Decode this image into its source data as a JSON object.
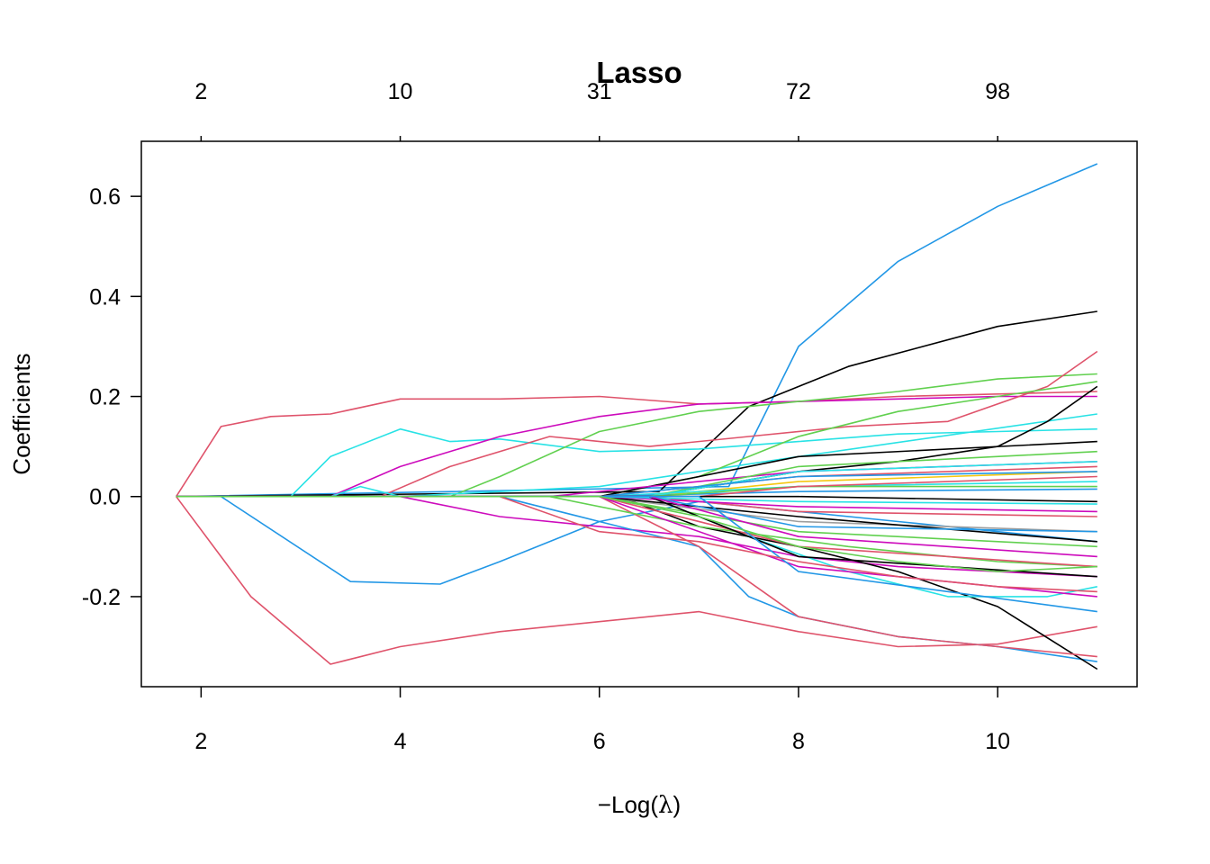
{
  "chart_data": {
    "type": "line",
    "title": "Lasso",
    "xlabel_prefix": "−Log(",
    "xlabel_symbol": "λ",
    "xlabel_suffix": ")",
    "ylabel": "Coefficients",
    "xlim": [
      1.4,
      11.4
    ],
    "ylim": [
      -0.38,
      0.71
    ],
    "x_ticks": [
      2,
      4,
      6,
      8,
      10
    ],
    "y_ticks": [
      0.6,
      0.4,
      0.2,
      0.0,
      -0.2
    ],
    "y_tick_labels": [
      "0.6",
      "0.4",
      "0.2",
      "0.0",
      "-0.2"
    ],
    "top_axis": {
      "positions": [
        2,
        4,
        6,
        8,
        10
      ],
      "labels": [
        "2",
        "10",
        "31",
        "72",
        "98"
      ]
    },
    "grid": false,
    "legend": "none",
    "series": [
      {
        "color": "#2297E6",
        "x": [
          1.75,
          7.3,
          8.0,
          9.0,
          10.0,
          11.0
        ],
        "values": [
          0,
          0.02,
          0.3,
          0.47,
          0.58,
          0.665
        ]
      },
      {
        "color": "#000000",
        "x": [
          1.75,
          6.6,
          7.5,
          8.5,
          10.0,
          11.0
        ],
        "values": [
          0,
          0.01,
          0.18,
          0.26,
          0.34,
          0.37
        ]
      },
      {
        "color": "#DF536B",
        "x": [
          1.75,
          2.2,
          2.7,
          3.3,
          4.0,
          5.0,
          6.0,
          7.0,
          8.0,
          9.0,
          10.0,
          11.0
        ],
        "values": [
          0,
          0.14,
          0.16,
          0.165,
          0.195,
          0.195,
          0.2,
          0.185,
          0.19,
          0.2,
          0.205,
          0.21
        ]
      },
      {
        "color": "#DF536B",
        "x": [
          1.75,
          2.5,
          3.3,
          4.0,
          5.0,
          6.0,
          7.0,
          8.0,
          9.0,
          10.0,
          11.0
        ],
        "values": [
          0,
          -0.2,
          -0.335,
          -0.3,
          -0.27,
          -0.25,
          -0.23,
          -0.27,
          -0.3,
          -0.295,
          -0.26
        ]
      },
      {
        "color": "#2297E6",
        "x": [
          1.75,
          2.2,
          3.5,
          4.4,
          5.0,
          6.0,
          7.0,
          8.0,
          9.0,
          10.0,
          11.0
        ],
        "values": [
          0,
          0,
          -0.17,
          -0.175,
          -0.13,
          -0.05,
          -0.01,
          -0.03,
          -0.05,
          -0.07,
          -0.09
        ]
      },
      {
        "color": "#28E2E5",
        "x": [
          1.75,
          2.9,
          3.3,
          4.0,
          4.5,
          5.0,
          6.0,
          7.0,
          8.0,
          9.0,
          10.0,
          11.0
        ],
        "values": [
          0,
          0,
          0.08,
          0.135,
          0.11,
          0.115,
          0.09,
          0.095,
          0.11,
          0.125,
          0.13,
          0.135
        ]
      },
      {
        "color": "#CD0BBC",
        "x": [
          1.75,
          3.3,
          4.0,
          5.0,
          6.0,
          7.0,
          8.0,
          9.0,
          10.0,
          11.0
        ],
        "values": [
          0,
          0,
          0.06,
          0.12,
          0.16,
          0.185,
          0.19,
          0.195,
          0.2,
          0.2
        ]
      },
      {
        "color": "#61D04F",
        "x": [
          1.75,
          4.5,
          5.0,
          6.0,
          7.0,
          8.0,
          9.0,
          10.0,
          11.0
        ],
        "values": [
          0,
          0,
          0.04,
          0.13,
          0.17,
          0.19,
          0.21,
          0.235,
          0.245
        ]
      },
      {
        "color": "#DF536B",
        "x": [
          1.75,
          3.8,
          4.5,
          5.5,
          6.5,
          7.5,
          8.5,
          9.5,
          10.5,
          11.0
        ],
        "values": [
          0,
          0,
          0.06,
          0.12,
          0.1,
          0.12,
          0.14,
          0.15,
          0.22,
          0.29
        ]
      },
      {
        "color": "#28E2E5",
        "x": [
          1.75,
          3.3,
          3.6,
          4.0,
          6.0,
          8.0,
          11.0
        ],
        "values": [
          0,
          0,
          0.02,
          0,
          0.02,
          0.08,
          0.165
        ]
      },
      {
        "color": "#CD0BBC",
        "x": [
          1.75,
          4.0,
          5.0,
          6.0,
          7.0,
          8.0,
          9.0,
          10.0,
          11.0
        ],
        "values": [
          0,
          0,
          -0.04,
          -0.06,
          -0.08,
          -0.12,
          -0.14,
          -0.15,
          -0.16
        ]
      },
      {
        "color": "#2297E6",
        "x": [
          1.75,
          5.0,
          6.0,
          7.0,
          7.5,
          8.0,
          9.0,
          10.0,
          11.0
        ],
        "values": [
          0,
          0,
          -0.05,
          -0.1,
          -0.2,
          -0.24,
          -0.28,
          -0.3,
          -0.33
        ]
      },
      {
        "color": "#000000",
        "x": [
          1.75,
          6.2,
          7.0,
          8.0,
          9.0,
          10.0,
          11.0
        ],
        "values": [
          0,
          0,
          -0.06,
          -0.1,
          -0.15,
          -0.22,
          -0.345
        ]
      },
      {
        "color": "#DF536B",
        "x": [
          1.75,
          6.0,
          7.0,
          7.5,
          8.0,
          9.0,
          10.0,
          11.0
        ],
        "values": [
          0,
          0,
          -0.1,
          -0.17,
          -0.24,
          -0.28,
          -0.3,
          -0.32
        ]
      },
      {
        "color": "#61D04F",
        "x": [
          1.75,
          6.0,
          7.0,
          8.0,
          9.0,
          10.0,
          11.0
        ],
        "values": [
          0,
          0,
          0.04,
          0.12,
          0.17,
          0.2,
          0.23
        ]
      },
      {
        "color": "#000000",
        "x": [
          1.75,
          6.5,
          8.0,
          9.0,
          10.0,
          10.5,
          11.0
        ],
        "values": [
          0,
          0,
          0.05,
          0.07,
          0.1,
          0.15,
          0.22
        ]
      },
      {
        "color": "#28E2E5",
        "x": [
          1.75,
          6.5,
          7.5,
          8.5,
          9.5,
          10.5,
          11.0
        ],
        "values": [
          0,
          0,
          -0.08,
          -0.15,
          -0.2,
          -0.2,
          -0.18
        ]
      },
      {
        "color": "#61D04F",
        "x": [
          1.75,
          5.5,
          7.0,
          8.5,
          10.0,
          11.0
        ],
        "values": [
          0,
          0,
          -0.06,
          -0.1,
          -0.13,
          -0.14
        ]
      },
      {
        "color": "#9E9E9E",
        "x": [
          1.75,
          6.0,
          8.0,
          11.0
        ],
        "values": [
          0,
          0,
          -0.05,
          -0.07
        ]
      },
      {
        "color": "#F5C710",
        "x": [
          1.75,
          6.5,
          8.0,
          11.0
        ],
        "values": [
          0,
          0,
          0.03,
          0.05
        ]
      },
      {
        "color": "#DF536B",
        "x": [
          1.75,
          6.0,
          8.0,
          11.0
        ],
        "values": [
          0,
          0,
          0.04,
          0.06
        ]
      },
      {
        "color": "#000000",
        "x": [
          1.75,
          6.0,
          8.0,
          11.0
        ],
        "values": [
          0,
          0,
          0.08,
          0.11
        ]
      },
      {
        "color": "#CD0BBC",
        "x": [
          1.75,
          5.5,
          8.0,
          11.0
        ],
        "values": [
          0,
          0,
          0.05,
          0.07
        ]
      },
      {
        "color": "#28E2E5",
        "x": [
          1.75,
          6.0,
          8.0,
          11.0
        ],
        "values": [
          0,
          0,
          0.02,
          0.03
        ]
      },
      {
        "color": "#2297E6",
        "x": [
          1.75,
          6.0,
          8.0,
          11.0
        ],
        "values": [
          0,
          0,
          0.01,
          0.015
        ]
      },
      {
        "color": "#61D04F",
        "x": [
          1.75,
          6.5,
          8.0,
          11.0
        ],
        "values": [
          0,
          0,
          0.06,
          0.09
        ]
      },
      {
        "color": "#DF536B",
        "x": [
          1.75,
          6.5,
          8.0,
          11.0
        ],
        "values": [
          0,
          0,
          -0.03,
          -0.04
        ]
      },
      {
        "color": "#000000",
        "x": [
          1.75,
          6.0,
          8.0,
          11.0
        ],
        "values": [
          0,
          0,
          -0.04,
          -0.09
        ]
      },
      {
        "color": "#CD0BBC",
        "x": [
          1.75,
          6.0,
          8.0,
          11.0
        ],
        "values": [
          0,
          0,
          -0.02,
          -0.03
        ]
      },
      {
        "color": "#28E2E5",
        "x": [
          1.75,
          6.0,
          8.0,
          11.0
        ],
        "values": [
          0,
          0,
          -0.01,
          -0.015
        ]
      },
      {
        "color": "#2297E6",
        "x": [
          1.75,
          6.5,
          8.0,
          11.0
        ],
        "values": [
          0,
          0,
          -0.06,
          -0.07
        ]
      },
      {
        "color": "#61D04F",
        "x": [
          1.75,
          6.0,
          8.0,
          11.0
        ],
        "values": [
          0,
          0,
          -0.07,
          -0.1
        ]
      },
      {
        "color": "#DF536B",
        "x": [
          1.75,
          6.0,
          8.0,
          11.0
        ],
        "values": [
          0,
          0,
          -0.1,
          -0.14
        ]
      },
      {
        "color": "#000000",
        "x": [
          1.75,
          6.5,
          8.0,
          11.0
        ],
        "values": [
          0,
          0,
          -0.12,
          -0.16
        ]
      },
      {
        "color": "#CD0BBC",
        "x": [
          1.75,
          6.0,
          8.0,
          11.0
        ],
        "values": [
          0,
          0,
          -0.14,
          -0.2
        ]
      },
      {
        "color": "#28E2E5",
        "x": [
          1.75,
          6.5,
          8.0,
          11.0
        ],
        "values": [
          0,
          0,
          0.05,
          0.07
        ]
      },
      {
        "color": "#2297E6",
        "x": [
          1.75,
          6.0,
          8.0,
          11.0
        ],
        "values": [
          0,
          0,
          0.04,
          0.05
        ]
      },
      {
        "color": "#61D04F",
        "x": [
          1.75,
          6.5,
          8.0,
          11.0
        ],
        "values": [
          0,
          0,
          0.02,
          0.02
        ]
      },
      {
        "color": "#DF536B",
        "x": [
          1.75,
          7.0,
          8.0,
          11.0
        ],
        "values": [
          0,
          0,
          0.02,
          0.04
        ]
      },
      {
        "color": "#000000",
        "x": [
          1.75,
          6.0,
          8.0,
          11.0
        ],
        "values": [
          0,
          0,
          0.0,
          -0.01
        ]
      },
      {
        "color": "#CD0BBC",
        "x": [
          1.75,
          6.5,
          8.0,
          11.0
        ],
        "values": [
          0,
          0,
          -0.08,
          -0.12
        ]
      },
      {
        "color": "#2297E6",
        "x": [
          1.75,
          7.0,
          8.0,
          11.0
        ],
        "values": [
          0,
          0,
          -0.15,
          -0.23
        ]
      },
      {
        "color": "#DF536B",
        "x": [
          1.75,
          5.0,
          6.0,
          7.0,
          8.0,
          9.0,
          10.0,
          11.0
        ],
        "values": [
          0,
          0,
          -0.07,
          -0.09,
          -0.13,
          -0.16,
          -0.18,
          -0.19
        ]
      },
      {
        "color": "#61D04F",
        "x": [
          1.75,
          6.0,
          7.0,
          8.0,
          9.0,
          10.0,
          11.0
        ],
        "values": [
          0,
          0,
          -0.04,
          -0.1,
          -0.13,
          -0.15,
          -0.14
        ]
      }
    ]
  }
}
